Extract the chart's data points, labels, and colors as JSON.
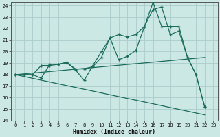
{
  "xlabel": "Humidex (Indice chaleur)",
  "xlim": [
    -0.5,
    23.5
  ],
  "ylim": [
    14,
    24.3
  ],
  "yticks": [
    14,
    15,
    16,
    17,
    18,
    19,
    20,
    21,
    22,
    23,
    24
  ],
  "xticks": [
    0,
    1,
    2,
    3,
    4,
    5,
    6,
    7,
    8,
    9,
    10,
    11,
    12,
    13,
    14,
    15,
    16,
    17,
    18,
    19,
    20,
    21,
    22,
    23
  ],
  "bg_color": "#cce8e5",
  "grid_color": "#aaccca",
  "line_color": "#1a6b5a",
  "series1_x": [
    0,
    1,
    2,
    3,
    4,
    5,
    6,
    7,
    8,
    9,
    10,
    11,
    12,
    13,
    14,
    15,
    16,
    17,
    18,
    19,
    20,
    21,
    22
  ],
  "series1_y": [
    18,
    18,
    18,
    18.8,
    18.8,
    18.9,
    19.0,
    18.5,
    18.5,
    18.7,
    19.5,
    21.2,
    21.5,
    21.3,
    21.5,
    22.2,
    23.7,
    23.9,
    21.5,
    21.8,
    19.5,
    18.0,
    15.2
  ],
  "series2_x": [
    0,
    1,
    2,
    3,
    4,
    5,
    6,
    7,
    8,
    9,
    10,
    11,
    12,
    13,
    14,
    15,
    16,
    17,
    18,
    19,
    20,
    21,
    22
  ],
  "series2_y": [
    18,
    18,
    18,
    17.7,
    18.9,
    18.9,
    19.1,
    18.4,
    17.5,
    18.8,
    20.0,
    21.2,
    19.3,
    19.6,
    20.1,
    22.2,
    24.3,
    22.2,
    22.2,
    22.2,
    19.5,
    18.0,
    15.2
  ],
  "series3_x": [
    0,
    22
  ],
  "series3_y": [
    18.0,
    19.5
  ],
  "series4_x": [
    0,
    22
  ],
  "series4_y": [
    18.0,
    14.5
  ]
}
